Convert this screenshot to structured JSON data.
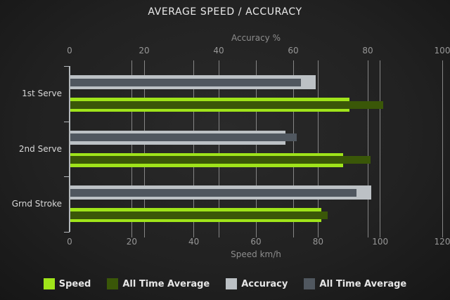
{
  "title": "AVERAGE SPEED / ACCURACY",
  "chart_data": {
    "type": "bar",
    "orientation": "horizontal",
    "categories": [
      "1st Serve",
      "2nd Serve",
      "Grnd Stroke"
    ],
    "axes": {
      "top": {
        "label": "Accuracy %",
        "min": 0,
        "max": 100,
        "ticks": [
          0,
          20,
          40,
          60,
          80,
          100
        ]
      },
      "bottom": {
        "label": "Speed km/h",
        "min": 0,
        "max": 120,
        "ticks": [
          0,
          20,
          40,
          60,
          80,
          100,
          120
        ]
      }
    },
    "series": [
      {
        "name": "Speed",
        "axis": "bottom",
        "role": "current",
        "color": "#9fe41a",
        "values": [
          90,
          88,
          81
        ]
      },
      {
        "name": "All Time Average",
        "axis": "bottom",
        "role": "average",
        "color": "#3a5708",
        "values": [
          101,
          97,
          83
        ]
      },
      {
        "name": "Accuracy",
        "axis": "top",
        "role": "current",
        "color": "#bcc1c5",
        "values": [
          66,
          58,
          81
        ]
      },
      {
        "name": "All Time Average",
        "axis": "top",
        "role": "average",
        "color": "#50575f",
        "values": [
          62,
          61,
          77
        ]
      }
    ],
    "legend": [
      {
        "label": "Speed",
        "color": "#9fe41a"
      },
      {
        "label": "All Time Average",
        "color": "#3a5708"
      },
      {
        "label": "Accuracy",
        "color": "#bcc1c5"
      },
      {
        "label": "All Time Average",
        "color": "#50575f"
      }
    ],
    "legend_position": "bottom",
    "grid": true,
    "theme": {
      "background": "#212121",
      "gridline": "#868686",
      "axis_line": "#b3b7ba",
      "title_color": "#eaeaea",
      "tick_color": "#979797"
    }
  }
}
